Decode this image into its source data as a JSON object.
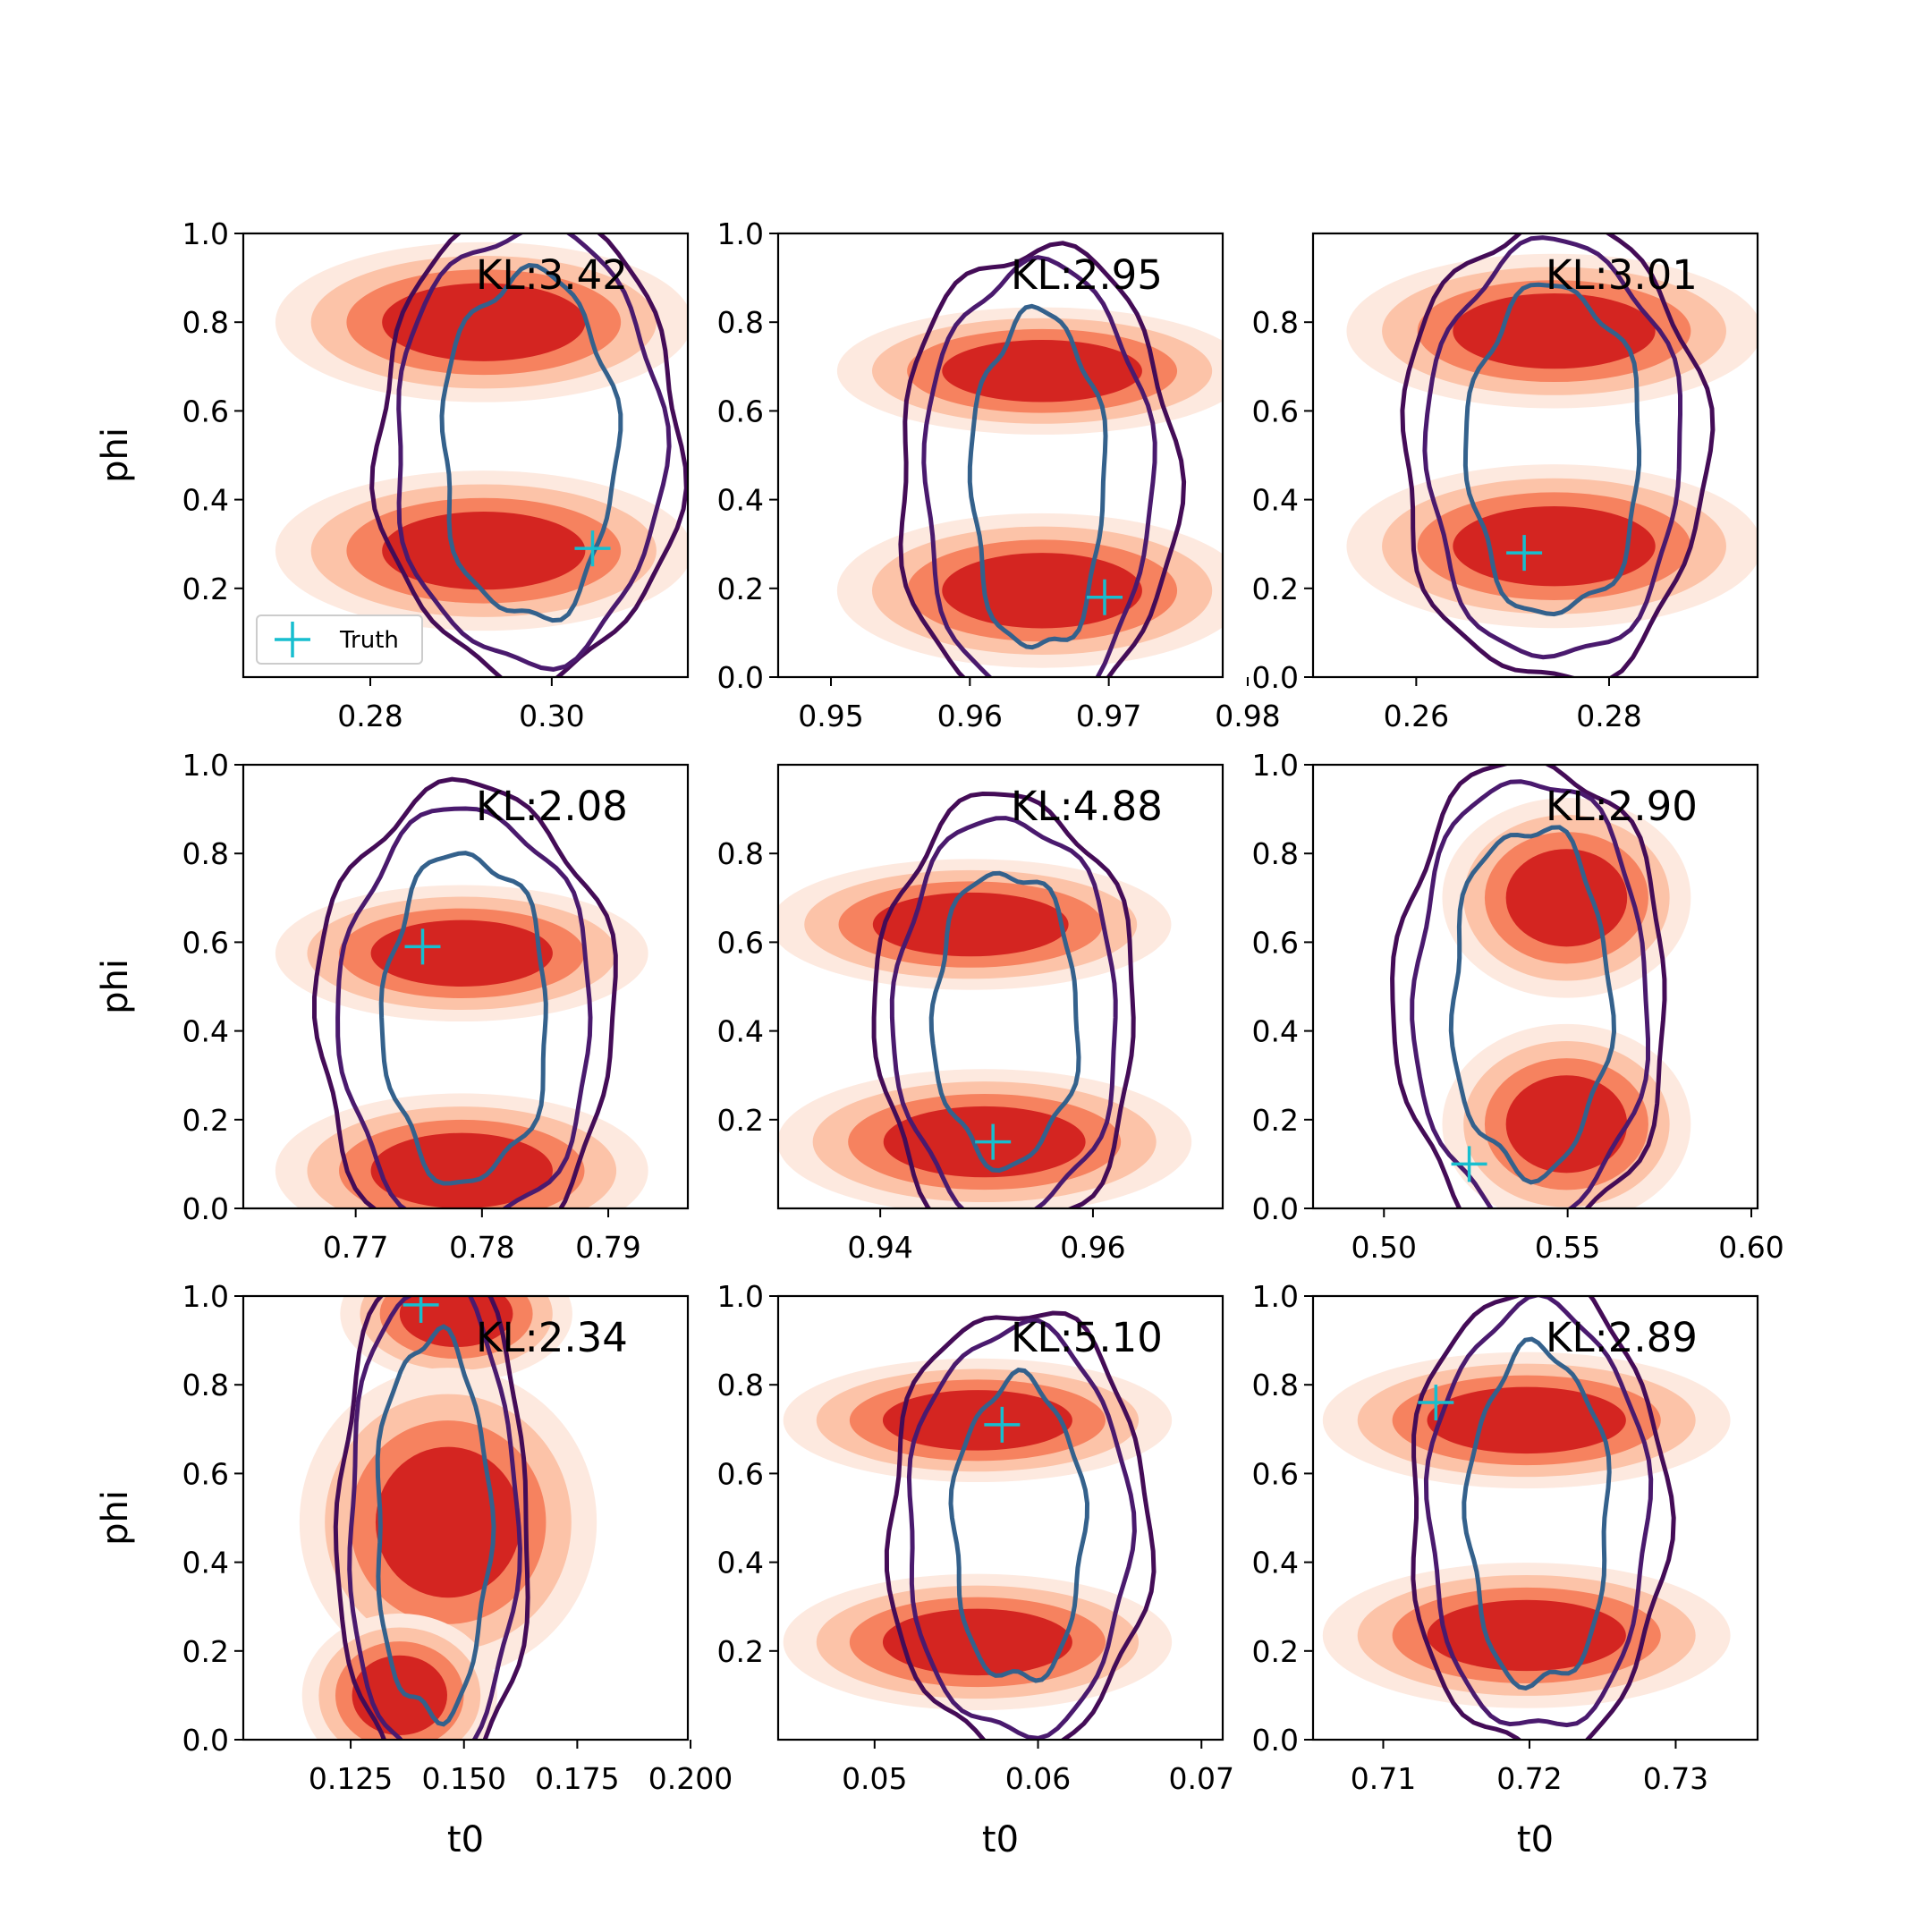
{
  "colors": {
    "fill_levels": [
      "#fde9df",
      "#fcc3a8",
      "#f6825f",
      "#d42521"
    ],
    "contour_outer": "#440c57",
    "contour_mid": "#4a1a6e",
    "contour_inner": "#34618c",
    "truth": "#17becf"
  },
  "chart_data": [
    {
      "type": "contour",
      "xlabel": "",
      "ylabel": "phi",
      "xlim": [
        0.266,
        0.315
      ],
      "ylim": [
        0.0,
        1.0
      ],
      "xticks": [
        0.28,
        0.3
      ],
      "xtick_labels": [
        "0.28",
        "0.30"
      ],
      "yticks": [
        0.2,
        0.4,
        0.6,
        0.8,
        1.0
      ],
      "ytick_labels": [
        "0.2",
        "0.4",
        "0.6",
        "0.8",
        "1.0"
      ],
      "kl_text": "KL:3.42",
      "truth": [
        0.3045,
        0.29
      ],
      "legend": {
        "label": "Truth"
      },
      "blobs": [
        {
          "cx": 0.2925,
          "cy": 0.8,
          "sx": 0.0112,
          "sy": 0.088
        },
        {
          "cx": 0.2925,
          "cy": 0.285,
          "sx": 0.0112,
          "sy": 0.088
        }
      ],
      "contours": {
        "cx": 0.2975,
        "cy": 0.52,
        "inner": [
          0.0096,
          0.39
        ],
        "mid": [
          0.0148,
          0.49
        ],
        "outer": [
          0.0168,
          0.52
        ]
      }
    },
    {
      "type": "contour",
      "xlabel": "",
      "ylabel": "",
      "xlim": [
        0.9462,
        0.9782
      ],
      "ylim": [
        0.0,
        1.0
      ],
      "xticks": [
        0.95,
        0.96,
        0.97,
        0.98
      ],
      "xtick_labels": [
        "0.95",
        "0.96",
        "0.97",
        "0.98"
      ],
      "yticks": [
        0.0,
        0.2,
        0.4,
        0.6,
        0.8,
        1.0
      ],
      "ytick_labels": [
        "0.0",
        "0.2",
        "0.4",
        "0.6",
        "0.8",
        "1.0"
      ],
      "kl_text": "KL:2.95",
      "truth": [
        0.9697,
        0.18
      ],
      "blobs": [
        {
          "cx": 0.9652,
          "cy": 0.69,
          "sx": 0.0072,
          "sy": 0.07
        },
        {
          "cx": 0.9652,
          "cy": 0.195,
          "sx": 0.0072,
          "sy": 0.085
        }
      ],
      "contours": {
        "cx": 0.9649,
        "cy": 0.44,
        "inner": [
          0.0048,
          0.38
        ],
        "mid": [
          0.0082,
          0.49
        ],
        "outer": [
          0.01,
          0.53
        ]
      }
    },
    {
      "type": "contour",
      "xlabel": "",
      "ylabel": "",
      "xlim": [
        0.2493,
        0.2954
      ],
      "ylim": [
        0.0,
        1.0
      ],
      "xticks": [
        0.26,
        0.28
      ],
      "xtick_labels": [
        "0.26",
        "0.28"
      ],
      "yticks": [
        0.0,
        0.2,
        0.4,
        0.6,
        0.8
      ],
      "ytick_labels": [
        "0.0",
        "0.2",
        "0.4",
        "0.6",
        "0.8"
      ],
      "kl_text": "KL:3.01",
      "truth": [
        0.2712,
        0.28
      ],
      "blobs": [
        {
          "cx": 0.2743,
          "cy": 0.78,
          "sx": 0.0105,
          "sy": 0.085
        },
        {
          "cx": 0.2743,
          "cy": 0.295,
          "sx": 0.0105,
          "sy": 0.09
        }
      ],
      "contours": {
        "cx": 0.2743,
        "cy": 0.51,
        "inner": [
          0.009,
          0.37
        ],
        "mid": [
          0.0132,
          0.47
        ],
        "outer": [
          0.0158,
          0.52
        ]
      }
    },
    {
      "type": "contour",
      "xlabel": "",
      "ylabel": "phi",
      "xlim": [
        0.7611,
        0.7963
      ],
      "ylim": [
        0.0,
        1.0
      ],
      "xticks": [
        0.77,
        0.78,
        0.79
      ],
      "xtick_labels": [
        "0.77",
        "0.78",
        "0.79"
      ],
      "yticks": [
        0.0,
        0.2,
        0.4,
        0.6,
        0.8,
        1.0
      ],
      "ytick_labels": [
        "0.0",
        "0.2",
        "0.4",
        "0.6",
        "0.8",
        "1.0"
      ],
      "kl_text": "KL:2.08",
      "truth": [
        0.7753,
        0.59
      ],
      "blobs": [
        {
          "cx": 0.7784,
          "cy": 0.575,
          "sx": 0.0072,
          "sy": 0.075
        },
        {
          "cx": 0.7784,
          "cy": 0.085,
          "sx": 0.0072,
          "sy": 0.085
        }
      ],
      "contours": {
        "cx": 0.7787,
        "cy": 0.43,
        "inner": [
          0.0065,
          0.37
        ],
        "mid": [
          0.01,
          0.47
        ],
        "outer": [
          0.0118,
          0.52
        ]
      }
    },
    {
      "type": "contour",
      "xlabel": "",
      "ylabel": "",
      "xlim": [
        0.9304,
        0.9722
      ],
      "ylim": [
        0.0,
        1.0
      ],
      "xticks": [
        0.94,
        0.96
      ],
      "xtick_labels": [
        "0.94",
        "0.96"
      ],
      "yticks": [
        0.2,
        0.4,
        0.6,
        0.8
      ],
      "ytick_labels": [
        "0.2",
        "0.4",
        "0.6",
        "0.8"
      ],
      "kl_text": "KL:4.88",
      "truth": [
        0.9506,
        0.15
      ],
      "blobs": [
        {
          "cx": 0.9485,
          "cy": 0.64,
          "sx": 0.0092,
          "sy": 0.072
        },
        {
          "cx": 0.9498,
          "cy": 0.15,
          "sx": 0.0095,
          "sy": 0.08
        }
      ],
      "contours": {
        "cx": 0.9518,
        "cy": 0.43,
        "inner": [
          0.0068,
          0.33
        ],
        "mid": [
          0.0105,
          0.45
        ],
        "outer": [
          0.0122,
          0.5
        ]
      }
    },
    {
      "type": "contour",
      "xlabel": "",
      "ylabel": "",
      "xlim": [
        0.4807,
        0.6017
      ],
      "ylim": [
        0.0,
        1.0
      ],
      "xticks": [
        0.5,
        0.55,
        0.6
      ],
      "xtick_labels": [
        "0.50",
        "0.55",
        "0.60"
      ],
      "yticks": [
        0.0,
        0.2,
        0.4,
        0.6,
        0.8,
        1.0
      ],
      "ytick_labels": [
        "0.0",
        "0.2",
        "0.4",
        "0.6",
        "0.8",
        "1.0"
      ],
      "kl_text": "KL:2.90",
      "truth": [
        0.5232,
        0.1
      ],
      "blobs": [
        {
          "cx": 0.5497,
          "cy": 0.7,
          "sx": 0.0165,
          "sy": 0.11
        },
        {
          "cx": 0.5497,
          "cy": 0.19,
          "sx": 0.0165,
          "sy": 0.11
        }
      ],
      "contours": {
        "cx": 0.54,
        "cy": 0.47,
        "inner": [
          0.0215,
          0.39
        ],
        "mid": [
          0.0318,
          0.5
        ],
        "outer": [
          0.037,
          0.54
        ]
      }
    },
    {
      "type": "contour",
      "xlabel": "t0",
      "ylabel": "phi",
      "xlim": [
        0.1013,
        0.1994
      ],
      "ylim": [
        0.0,
        1.0
      ],
      "xticks": [
        0.125,
        0.15,
        0.175,
        0.2
      ],
      "xtick_labels": [
        "0.125",
        "0.150",
        "0.175",
        "0.200"
      ],
      "yticks": [
        0.0,
        0.2,
        0.4,
        0.6,
        0.8,
        1.0
      ],
      "ytick_labels": [
        "0.0",
        "0.2",
        "0.4",
        "0.6",
        "0.8",
        "1.0"
      ],
      "kl_text": "KL:2.34",
      "truth": [
        0.1405,
        0.98
      ],
      "blobs": [
        {
          "cx": 0.1483,
          "cy": 0.96,
          "sx": 0.0125,
          "sy": 0.075
        },
        {
          "cx": 0.1465,
          "cy": 0.49,
          "sx": 0.016,
          "sy": 0.17
        },
        {
          "cx": 0.1358,
          "cy": 0.1,
          "sx": 0.0105,
          "sy": 0.09
        }
      ],
      "contours": {
        "cx": 0.1432,
        "cy": 0.48,
        "inner": [
          0.0125,
          0.43
        ],
        "mid": [
          0.0185,
          0.55
        ],
        "outer": [
          0.021,
          0.6
        ]
      }
    },
    {
      "type": "contour",
      "xlabel": "t0",
      "ylabel": "",
      "xlim": [
        0.0441,
        0.0713
      ],
      "ylim": [
        0.0,
        1.0
      ],
      "xticks": [
        0.05,
        0.06,
        0.07
      ],
      "xtick_labels": [
        "0.05",
        "0.06",
        "0.07"
      ],
      "yticks": [
        0.2,
        0.4,
        0.6,
        0.8,
        1.0
      ],
      "ytick_labels": [
        "0.2",
        "0.4",
        "0.6",
        "0.8",
        "1.0"
      ],
      "kl_text": "KL:5.10",
      "truth": [
        0.0578,
        0.71
      ],
      "blobs": [
        {
          "cx": 0.0563,
          "cy": 0.72,
          "sx": 0.0058,
          "sy": 0.068
        },
        {
          "cx": 0.0563,
          "cy": 0.22,
          "sx": 0.0058,
          "sy": 0.075
        }
      ],
      "contours": {
        "cx": 0.0588,
        "cy": 0.47,
        "inner": [
          0.004,
          0.34
        ],
        "mid": [
          0.0068,
          0.46
        ],
        "outer": [
          0.008,
          0.5
        ]
      }
    },
    {
      "type": "contour",
      "xlabel": "t0",
      "ylabel": "",
      "xlim": [
        0.7052,
        0.7356
      ],
      "ylim": [
        0.0,
        1.0
      ],
      "xticks": [
        0.71,
        0.72,
        0.73
      ],
      "xtick_labels": [
        "0.71",
        "0.72",
        "0.73"
      ],
      "yticks": [
        0.0,
        0.2,
        0.4,
        0.6,
        0.8,
        1.0
      ],
      "ytick_labels": [
        "0.0",
        "0.2",
        "0.4",
        "0.6",
        "0.8",
        "1.0"
      ],
      "kl_text": "KL:2.89",
      "truth": [
        0.7136,
        0.76
      ],
      "blobs": [
        {
          "cx": 0.7198,
          "cy": 0.72,
          "sx": 0.0068,
          "sy": 0.075
        },
        {
          "cx": 0.7198,
          "cy": 0.235,
          "sx": 0.0068,
          "sy": 0.08
        }
      ],
      "contours": {
        "cx": 0.7206,
        "cy": 0.5,
        "inner": [
          0.0048,
          0.38
        ],
        "mid": [
          0.0075,
          0.48
        ],
        "outer": [
          0.0088,
          0.53
        ]
      }
    }
  ]
}
